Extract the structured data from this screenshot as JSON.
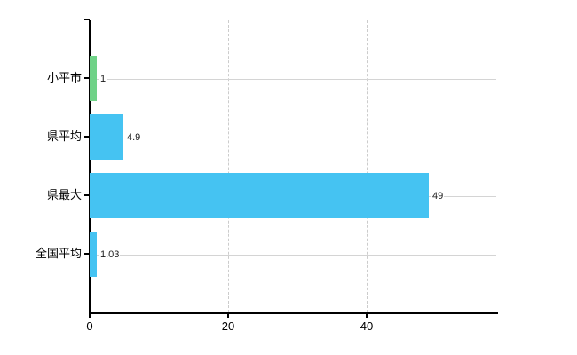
{
  "chart_data": {
    "type": "bar",
    "orientation": "horizontal",
    "title": "",
    "xlabel": "",
    "ylabel": "",
    "categories": [
      "小平市",
      "県平均",
      "県最大",
      "全国平均"
    ],
    "values": [
      1,
      4.9,
      49,
      1.03
    ],
    "value_labels": [
      "1",
      "4.9",
      "49",
      "1.03"
    ],
    "bar_colors": [
      "#6fd287",
      "#45c3f2",
      "#45c3f2",
      "#45c3f2"
    ],
    "x_ticks": [
      {
        "value": 0,
        "label": "0"
      },
      {
        "value": 20,
        "label": "20"
      },
      {
        "value": 40,
        "label": "40"
      }
    ],
    "xlim": [
      0,
      58.8
    ],
    "grid": {
      "vertical_gridlines": "dashed",
      "row_lines": "solid"
    },
    "legend": "none"
  },
  "colors": {
    "green_bar": "#6fd287",
    "blue_bar": "#45c3f2",
    "vertical_gridline": "#cccccc",
    "row_gridline": "#d4d4d4",
    "axis": "#000000",
    "background": "#ffffff"
  }
}
